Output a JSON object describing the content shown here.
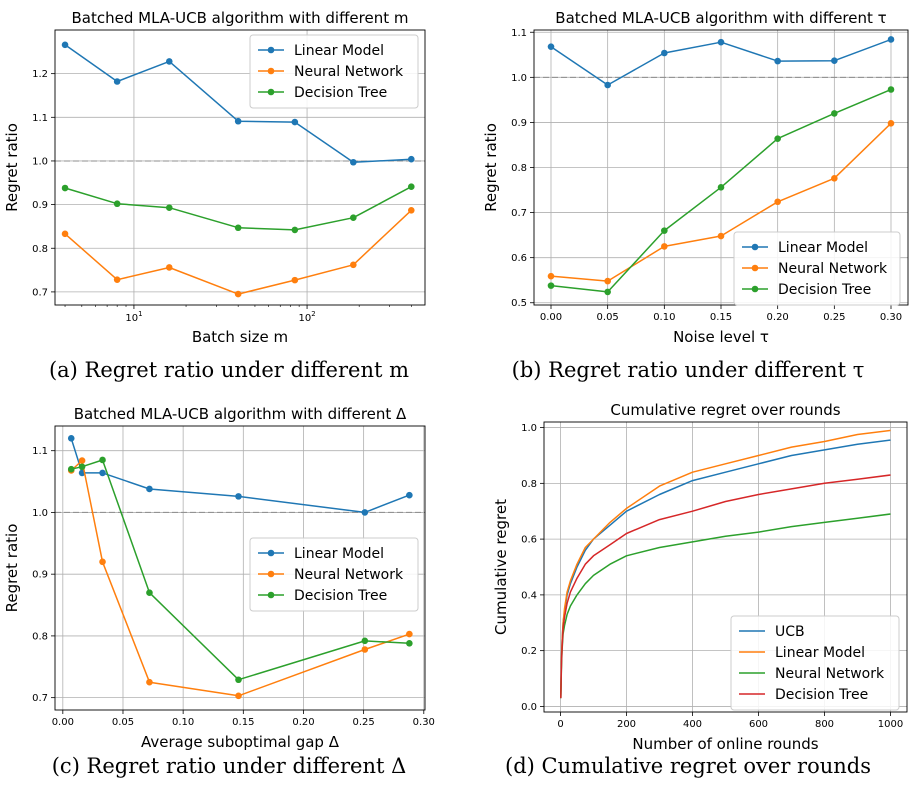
{
  "chart_data": [
    {
      "type": "line",
      "title": "Batched MLA-UCB algorithm with different m",
      "xlabel": "Batch size m",
      "ylabel": "Regret ratio",
      "xscale": "log",
      "xlim": [
        3.5,
        480
      ],
      "ylim": [
        0.67,
        1.3
      ],
      "xticks": [
        {
          "v": 10,
          "base": "10",
          "exp": "1"
        },
        {
          "v": 100,
          "base": "10",
          "exp": "2"
        }
      ],
      "yticks": [
        0.7,
        0.8,
        0.9,
        1.0,
        1.1,
        1.2
      ],
      "ytick_labels": [
        "0.7",
        "0.8",
        "0.9",
        "1.0",
        "1.1",
        "1.2"
      ],
      "reference_line": 1.0,
      "grid": true,
      "legend_position": "upper-right",
      "x": [
        4,
        8,
        16,
        40,
        85,
        185,
        400
      ],
      "series": [
        {
          "name": "Linear Model",
          "color": "#1f77b4",
          "values": [
            1.266,
            1.182,
            1.228,
            1.091,
            1.089,
            0.997,
            1.004
          ]
        },
        {
          "name": "Neural Network",
          "color": "#ff7f0e",
          "values": [
            0.833,
            0.728,
            0.756,
            0.695,
            0.727,
            0.762,
            0.887
          ]
        },
        {
          "name": "Decision Tree",
          "color": "#2ca02c",
          "values": [
            0.938,
            0.902,
            0.893,
            0.847,
            0.842,
            0.87,
            0.941
          ]
        }
      ],
      "caption": "(a) Regret ratio under different m"
    },
    {
      "type": "line",
      "title": "Batched MLA-UCB algorithm with different τ",
      "xlabel": "Noise level τ",
      "ylabel": "Regret ratio",
      "xlim": [
        -0.015,
        0.315
      ],
      "ylim": [
        0.495,
        1.105
      ],
      "xticks": [
        0.0,
        0.05,
        0.1,
        0.15,
        0.2,
        0.25,
        0.3
      ],
      "xtick_labels": [
        "0.00",
        "0.05",
        "0.10",
        "0.15",
        "0.20",
        "0.25",
        "0.30"
      ],
      "yticks": [
        0.5,
        0.6,
        0.7,
        0.8,
        0.9,
        1.0,
        1.1
      ],
      "ytick_labels": [
        "0.5",
        "0.6",
        "0.7",
        "0.8",
        "0.9",
        "1.0",
        "1.1"
      ],
      "reference_line": 1.0,
      "grid": true,
      "legend_position": "lower-right",
      "x": [
        0.0,
        0.05,
        0.1,
        0.15,
        0.2,
        0.25,
        0.3
      ],
      "series": [
        {
          "name": "Linear Model",
          "color": "#1f77b4",
          "values": [
            1.068,
            0.983,
            1.054,
            1.078,
            1.036,
            1.037,
            1.084
          ]
        },
        {
          "name": "Neural Network",
          "color": "#ff7f0e",
          "values": [
            0.559,
            0.548,
            0.625,
            0.648,
            0.724,
            0.776,
            0.898
          ]
        },
        {
          "name": "Decision Tree",
          "color": "#2ca02c",
          "values": [
            0.538,
            0.524,
            0.66,
            0.756,
            0.864,
            0.92,
            0.973
          ]
        }
      ],
      "caption": "(b) Regret ratio under different τ"
    },
    {
      "type": "line",
      "title": "Batched MLA-UCB algorithm with different Δ",
      "xlabel": "Average suboptimal gap Δ",
      "ylabel": "Regret ratio",
      "xlim": [
        -0.0065,
        0.301
      ],
      "ylim": [
        0.68,
        1.14
      ],
      "xticks": [
        0.0,
        0.05,
        0.1,
        0.15,
        0.2,
        0.25,
        0.3
      ],
      "xtick_labels": [
        "0.00",
        "0.05",
        "0.10",
        "0.15",
        "0.20",
        "0.25",
        "0.30"
      ],
      "yticks": [
        0.7,
        0.8,
        0.9,
        1.0,
        1.1
      ],
      "ytick_labels": [
        "0.7",
        "0.8",
        "0.9",
        "1.0",
        "1.1"
      ],
      "reference_line": 1.0,
      "grid": true,
      "legend_position": "center-right",
      "x": [
        0.007,
        0.016,
        0.033,
        0.072,
        0.146,
        0.251,
        0.288
      ],
      "series": [
        {
          "name": "Linear Model",
          "color": "#1f77b4",
          "values": [
            1.12,
            1.064,
            1.064,
            1.038,
            1.026,
            1.0,
            1.028
          ]
        },
        {
          "name": "Neural Network",
          "color": "#ff7f0e",
          "values": [
            1.068,
            1.084,
            0.92,
            0.725,
            0.703,
            0.778,
            0.803
          ]
        },
        {
          "name": "Decision Tree",
          "color": "#2ca02c",
          "values": [
            1.07,
            1.074,
            1.085,
            0.87,
            0.729,
            0.792,
            0.788
          ]
        }
      ],
      "caption": "(c) Regret ratio under different Δ"
    },
    {
      "type": "line",
      "title": "Cumulative regret over rounds",
      "xlabel": "Number of online rounds",
      "ylabel": "Cumulative regret",
      "xlim": [
        -50,
        1050
      ],
      "ylim": [
        -0.02,
        1.02
      ],
      "xticks": [
        0,
        200,
        400,
        600,
        800,
        1000
      ],
      "xtick_labels": [
        "0",
        "200",
        "400",
        "600",
        "800",
        "1000"
      ],
      "yticks": [
        0.0,
        0.2,
        0.4,
        0.6,
        0.8,
        1.0
      ],
      "ytick_labels": [
        "0.0",
        "0.2",
        "0.4",
        "0.6",
        "0.8",
        "1.0"
      ],
      "grid": true,
      "legend_position": "lower-right",
      "x": [
        1,
        2,
        3,
        5,
        8,
        12,
        20,
        30,
        50,
        75,
        100,
        150,
        200,
        300,
        400,
        500,
        600,
        700,
        800,
        900,
        1000
      ],
      "series": [
        {
          "name": "UCB",
          "color": "#1f77b4",
          "values": [
            0.03,
            0.12,
            0.18,
            0.24,
            0.3,
            0.34,
            0.4,
            0.44,
            0.5,
            0.56,
            0.6,
            0.65,
            0.7,
            0.76,
            0.81,
            0.84,
            0.87,
            0.9,
            0.92,
            0.94,
            0.955
          ]
        },
        {
          "name": "Linear Model",
          "color": "#ff7f0e",
          "values": [
            0.03,
            0.12,
            0.18,
            0.24,
            0.3,
            0.35,
            0.41,
            0.45,
            0.51,
            0.57,
            0.6,
            0.66,
            0.71,
            0.79,
            0.84,
            0.87,
            0.9,
            0.93,
            0.95,
            0.975,
            0.99
          ]
        },
        {
          "name": "Neural Network",
          "color": "#2ca02c",
          "values": [
            0.03,
            0.1,
            0.15,
            0.21,
            0.26,
            0.29,
            0.33,
            0.36,
            0.4,
            0.44,
            0.47,
            0.51,
            0.54,
            0.57,
            0.59,
            0.61,
            0.625,
            0.645,
            0.66,
            0.675,
            0.69
          ]
        },
        {
          "name": "Decision Tree",
          "color": "#d62728",
          "values": [
            0.03,
            0.11,
            0.16,
            0.22,
            0.28,
            0.32,
            0.37,
            0.41,
            0.46,
            0.51,
            0.54,
            0.58,
            0.62,
            0.67,
            0.7,
            0.735,
            0.76,
            0.78,
            0.8,
            0.815,
            0.83
          ]
        }
      ],
      "caption": "(d) Cumulative regret over rounds"
    }
  ]
}
